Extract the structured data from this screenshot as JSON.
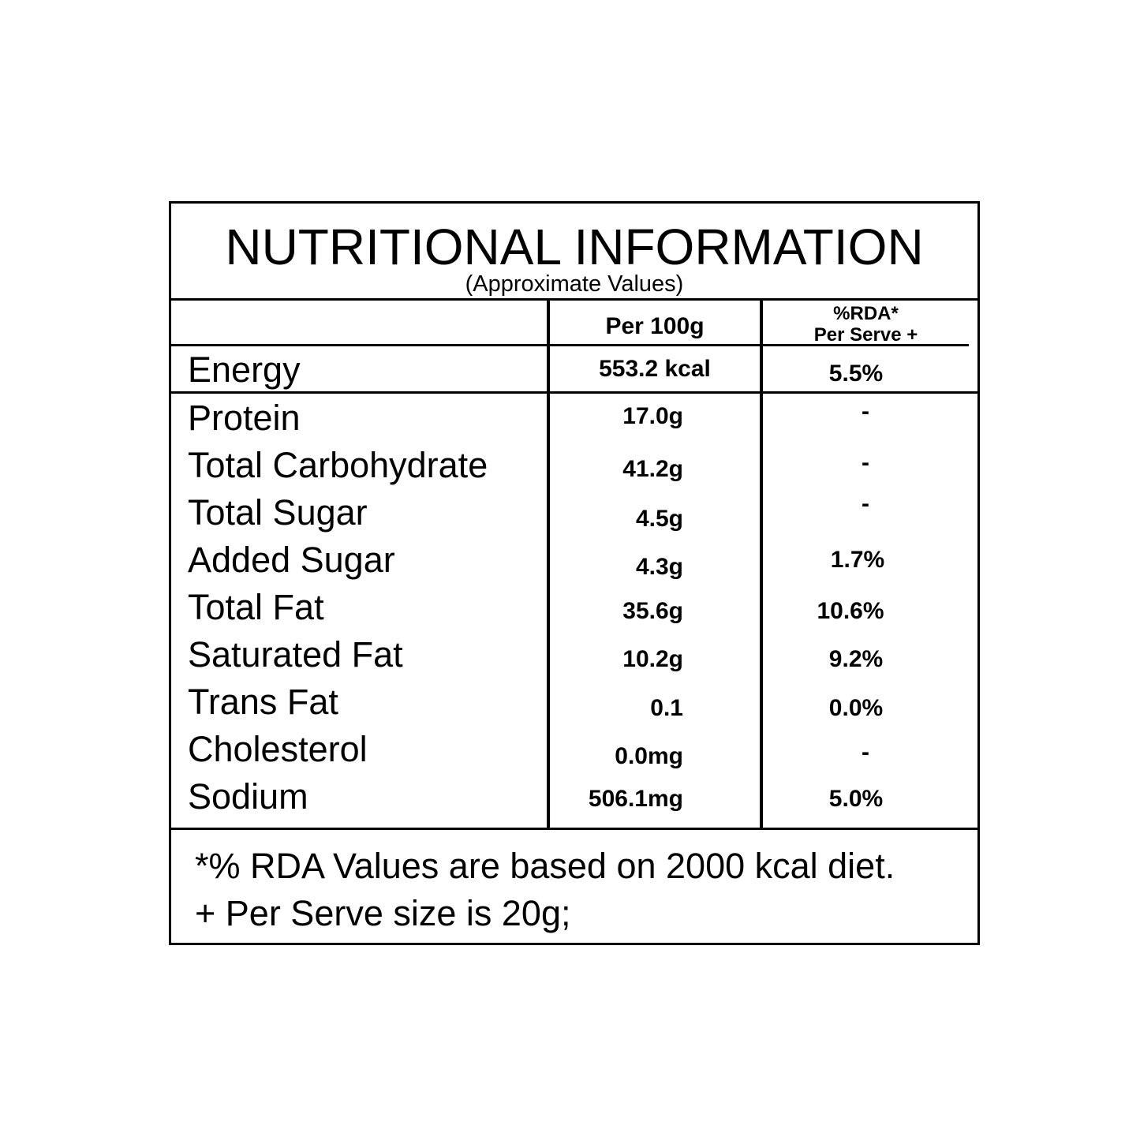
{
  "title": "NUTRITIONAL INFORMATION",
  "subtitle": "(Approximate Values)",
  "columns": {
    "per100": "Per 100g",
    "rda_line1": "%RDA*",
    "rda_line2": "Per Serve +"
  },
  "energy": {
    "name": "Energy",
    "value": "553.2 kcal",
    "rda": "5.5%"
  },
  "rows": [
    {
      "name": "Protein",
      "value": "17.0g",
      "rda": "-"
    },
    {
      "name": "Total Carbohydrate",
      "value": "41.2g",
      "rda": "-"
    },
    {
      "name": "Total Sugar",
      "value": "4.5g",
      "rda": "-"
    },
    {
      "name": "Added Sugar",
      "value": "4.3g",
      "rda": "1.7%"
    },
    {
      "name": "Total Fat",
      "value": "35.6g",
      "rda": "10.6%"
    },
    {
      "name": "Saturated Fat",
      "value": "10.2g",
      "rda": "9.2%"
    },
    {
      "name": "Trans Fat",
      "value": "0.1",
      "rda": "0.0%"
    },
    {
      "name": "Cholesterol",
      "value": "0.0mg",
      "rda": "-"
    },
    {
      "name": "Sodium",
      "value": "506.1mg",
      "rda": "5.0%"
    }
  ],
  "footnotes": {
    "line1": "*% RDA Values are based on 2000 kcal diet.",
    "line2": "+ Per Serve size is 20g;"
  }
}
